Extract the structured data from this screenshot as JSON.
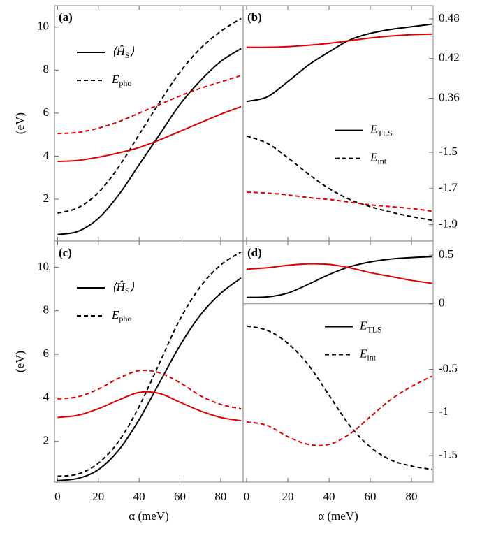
{
  "chart_data": [
    {
      "type": "line",
      "title": "(a)",
      "ylabel": "(eV)",
      "x": [
        0,
        10,
        20,
        30,
        40,
        50,
        60,
        70,
        80,
        90
      ],
      "xlim": [
        -1.5,
        91
      ],
      "xticks": [
        0,
        20,
        40,
        60,
        80
      ],
      "ylim": [
        0.05,
        11
      ],
      "yticks": [
        2,
        4,
        6,
        8,
        10
      ],
      "legend": "upper left",
      "series": [
        {
          "name": "⟨Ĥ_{S}⟩",
          "color": "#000000",
          "dashed": false,
          "values": [
            0.35,
            0.5,
            1.1,
            2.2,
            3.6,
            5.0,
            6.4,
            7.5,
            8.4,
            9.0
          ]
        },
        {
          "name": "E_{pho}",
          "color": "#000000",
          "dashed": true,
          "values": [
            1.35,
            1.6,
            2.3,
            3.5,
            5.0,
            6.5,
            7.9,
            9.0,
            9.8,
            10.4
          ]
        },
        {
          "color": "#e00000",
          "dashed": false,
          "values": [
            3.75,
            3.8,
            3.95,
            4.15,
            4.4,
            4.75,
            5.15,
            5.55,
            5.95,
            6.3
          ]
        },
        {
          "color": "#e00000",
          "dashed": true,
          "values": [
            5.05,
            5.1,
            5.3,
            5.6,
            6.0,
            6.4,
            6.8,
            7.15,
            7.45,
            7.75
          ]
        }
      ]
    },
    {
      "type": "line",
      "title": "(b)",
      "x": [
        0,
        10,
        20,
        30,
        40,
        50,
        60,
        70,
        80,
        90
      ],
      "xlim": [
        -1.7,
        90.5
      ],
      "xticks": [
        0,
        20,
        40,
        60,
        80
      ],
      "ylim": [
        0.322,
        0.5
      ],
      "yticks": [
        0.36,
        0.42,
        0.48
      ],
      "y2lim": [
        -1.99,
        -1.34
      ],
      "y2ticks": [
        -1.9,
        -1.7,
        -1.5
      ],
      "legend": "center right",
      "series": [
        {
          "name": "E_{TLS}",
          "color": "#000000",
          "dashed": false,
          "values": [
            0.355,
            0.362,
            0.385,
            0.41,
            0.43,
            0.448,
            0.458,
            0.464,
            0.468,
            0.472
          ]
        },
        {
          "name": "E_{int}",
          "color": "#000000",
          "dashed": true,
          "axis": "y2",
          "values": [
            -1.41,
            -1.45,
            -1.53,
            -1.62,
            -1.7,
            -1.76,
            -1.8,
            -1.83,
            -1.855,
            -1.875
          ]
        },
        {
          "color": "#e00000",
          "dashed": false,
          "values": [
            0.437,
            0.437,
            0.438,
            0.44,
            0.443,
            0.447,
            0.451,
            0.454,
            0.456,
            0.457
          ]
        },
        {
          "color": "#e00000",
          "dashed": true,
          "axis": "y2",
          "values": [
            -1.72,
            -1.725,
            -1.735,
            -1.75,
            -1.76,
            -1.775,
            -1.79,
            -1.8,
            -1.81,
            -1.825
          ]
        }
      ]
    },
    {
      "type": "line",
      "title": "(c)",
      "ylabel": "(eV)",
      "xlabel": "α (meV)",
      "x": [
        0,
        10,
        20,
        30,
        40,
        50,
        60,
        70,
        80,
        90
      ],
      "xlim": [
        -1.5,
        91
      ],
      "xticks": [
        0,
        20,
        40,
        60,
        80
      ],
      "ylim": [
        0.13,
        11.2
      ],
      "yticks": [
        2,
        4,
        6,
        8,
        10
      ],
      "legend": "upper left",
      "series": [
        {
          "name": "⟨Ĥ_{S}⟩",
          "color": "#000000",
          "dashed": false,
          "values": [
            0.2,
            0.3,
            0.7,
            1.6,
            3.0,
            4.7,
            6.4,
            7.8,
            8.8,
            9.5
          ]
        },
        {
          "name": "E_{pho}",
          "color": "#000000",
          "dashed": true,
          "values": [
            0.4,
            0.5,
            1.0,
            2.0,
            3.6,
            5.6,
            7.6,
            9.1,
            10.1,
            10.7
          ]
        },
        {
          "color": "#e00000",
          "dashed": false,
          "values": [
            3.1,
            3.2,
            3.5,
            3.9,
            4.25,
            4.2,
            3.8,
            3.4,
            3.1,
            2.95
          ]
        },
        {
          "color": "#e00000",
          "dashed": true,
          "values": [
            3.95,
            4.05,
            4.4,
            4.9,
            5.25,
            5.15,
            4.7,
            4.1,
            3.7,
            3.5
          ]
        }
      ]
    },
    {
      "type": "line",
      "title": "(d)",
      "xlabel": "α (meV)",
      "x": [
        0,
        10,
        20,
        30,
        40,
        50,
        60,
        70,
        80,
        90
      ],
      "xlim": [
        -1.7,
        90.5
      ],
      "xticks": [
        0,
        20,
        40,
        60,
        80
      ],
      "ylim": [
        0,
        0.645
      ],
      "yticks": [
        0,
        0.5
      ],
      "y2lim": [
        -1.806,
        0.258
      ],
      "y2ticks": [
        -1.5,
        -1,
        -0.5
      ],
      "legend": "upper right",
      "series": [
        {
          "name": "E_{TLS}",
          "color": "#000000",
          "dashed": false,
          "values": [
            0.065,
            0.07,
            0.11,
            0.2,
            0.3,
            0.38,
            0.43,
            0.46,
            0.475,
            0.485
          ]
        },
        {
          "name": "E_{int}",
          "color": "#000000",
          "dashed": true,
          "axis": "y2",
          "values": [
            0,
            -0.05,
            -0.2,
            -0.45,
            -0.8,
            -1.15,
            -1.4,
            -1.55,
            -1.62,
            -1.66
          ]
        },
        {
          "color": "#e00000",
          "dashed": false,
          "values": [
            0.355,
            0.37,
            0.395,
            0.41,
            0.405,
            0.37,
            0.32,
            0.28,
            0.24,
            0.21
          ]
        },
        {
          "color": "#e00000",
          "dashed": true,
          "axis": "y2",
          "values": [
            -1.11,
            -1.15,
            -1.28,
            -1.37,
            -1.37,
            -1.25,
            -1.05,
            -0.85,
            -0.7,
            -0.58
          ]
        }
      ]
    }
  ]
}
